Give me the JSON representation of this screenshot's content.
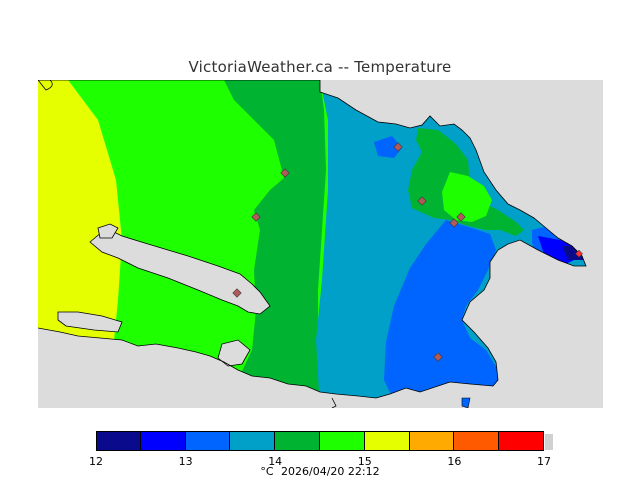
{
  "header": {
    "title": "VictoriaWeather.ca -- Temperature"
  },
  "legend": {
    "ticks": [
      "12",
      "13",
      "14",
      "15",
      "16",
      "17"
    ],
    "tick_values": [
      12,
      13,
      14,
      15,
      16,
      17
    ],
    "colors": [
      "#0a0a8c",
      "#0000ff",
      "#0064ff",
      "#00a0c8",
      "#00b432",
      "#1eff00",
      "#e6ff00",
      "#ffaa00",
      "#ff5a00",
      "#ff0000"
    ],
    "unit": "°C",
    "timestamp": "2026/04/20 22:12"
  },
  "map": {
    "background_color": "#dcdcdc",
    "station_color": "#e05050",
    "bands": [
      {
        "level": "13.5-14.0",
        "color": "#0064ff"
      },
      {
        "level": "14.0-14.5",
        "color": "#00a0c8"
      },
      {
        "level": "14.5-15.0",
        "color": "#00b432"
      },
      {
        "level": "15.0-15.5",
        "color": "#1eff00"
      },
      {
        "level": "15.5-16.0",
        "color": "#e6ff00"
      },
      {
        "level": "12.0-12.5",
        "color": "#0a0a8c"
      },
      {
        "level": "12.5-13.0",
        "color": "#0000ff"
      }
    ]
  }
}
